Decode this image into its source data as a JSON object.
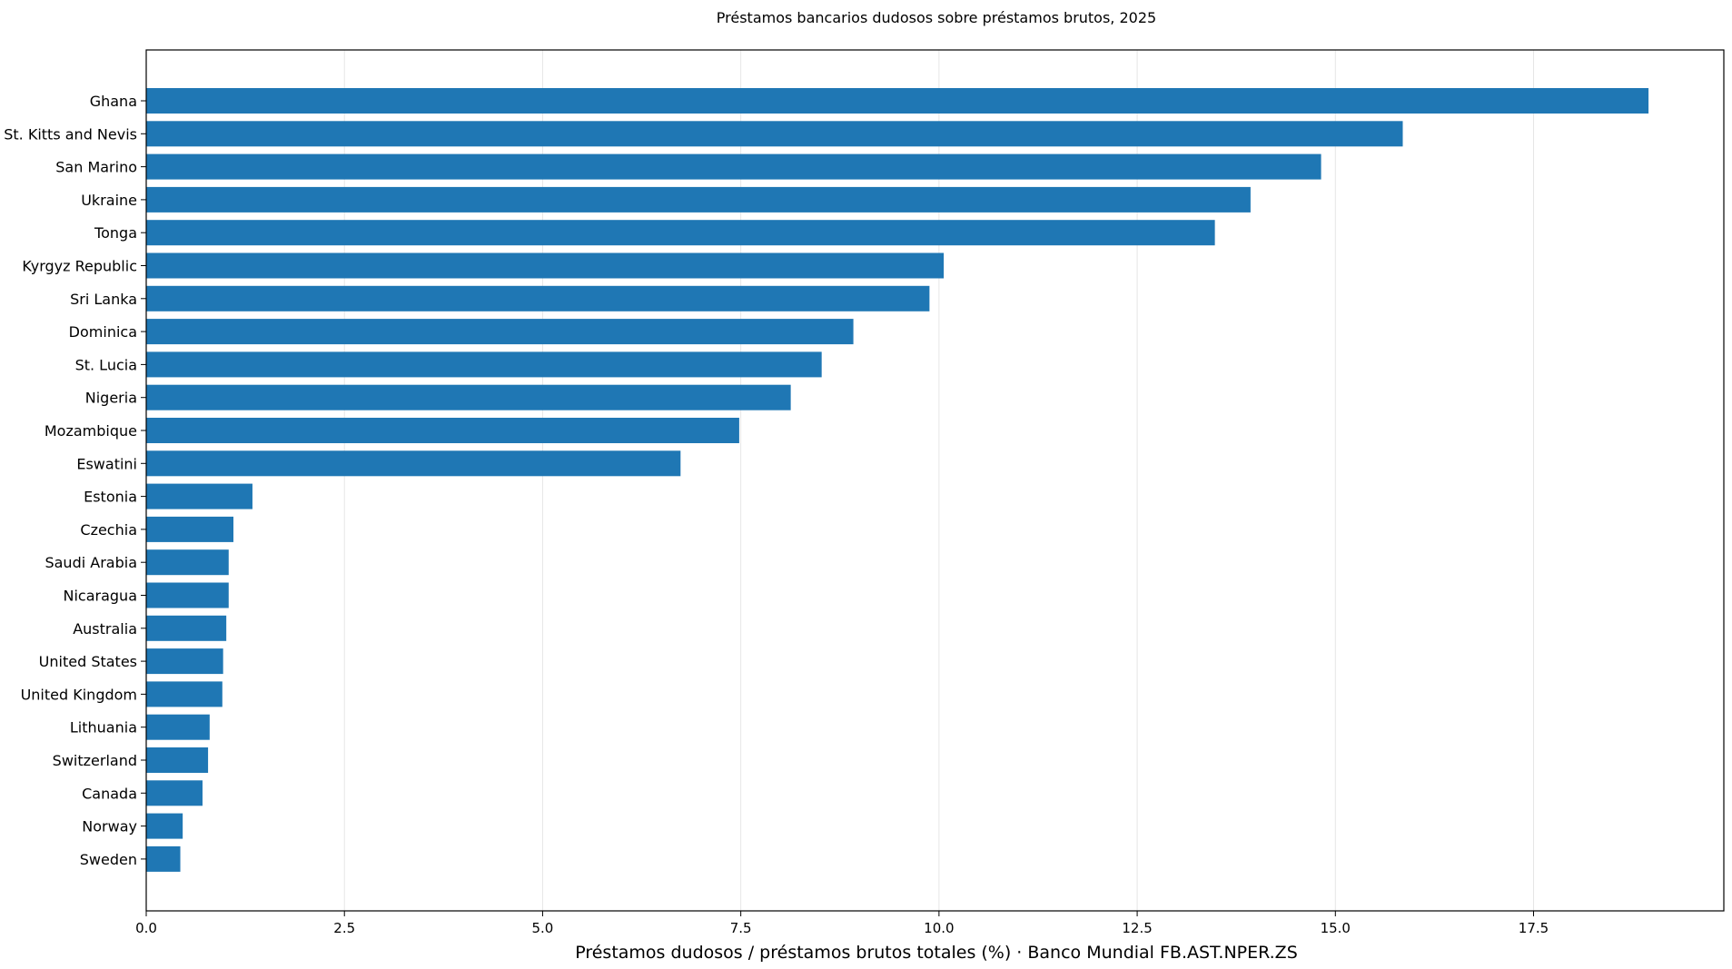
{
  "chart_data": {
    "type": "bar",
    "orientation": "horizontal",
    "title": "Préstamos bancarios dudosos sobre préstamos brutos, 2025",
    "xlabel": "Préstamos dudosos / préstamos brutos totales (%) · Banco Mundial FB.AST.NPER.ZS",
    "ylabel": "",
    "xlim": [
      0,
      19.9
    ],
    "xticks": [
      "0.0",
      "2.5",
      "5.0",
      "7.5",
      "10.0",
      "12.5",
      "15.0",
      "17.5"
    ],
    "grid": true,
    "categories": [
      "Ghana",
      "St. Kitts and Nevis",
      "San Marino",
      "Ukraine",
      "Tonga",
      "Kyrgyz Republic",
      "Sri Lanka",
      "Dominica",
      "St. Lucia",
      "Nigeria",
      "Mozambique",
      "Eswatini",
      "Estonia",
      "Czechia",
      "Saudi Arabia",
      "Nicaragua",
      "Australia",
      "United States",
      "United Kingdom",
      "Lithuania",
      "Switzerland",
      "Canada",
      "Norway",
      "Sweden"
    ],
    "values": [
      18.95,
      15.85,
      14.82,
      13.93,
      13.48,
      10.06,
      9.88,
      8.92,
      8.52,
      8.13,
      7.48,
      6.74,
      1.34,
      1.1,
      1.04,
      1.04,
      1.01,
      0.97,
      0.96,
      0.8,
      0.78,
      0.71,
      0.46,
      0.43
    ],
    "color": "#1f77b4"
  }
}
